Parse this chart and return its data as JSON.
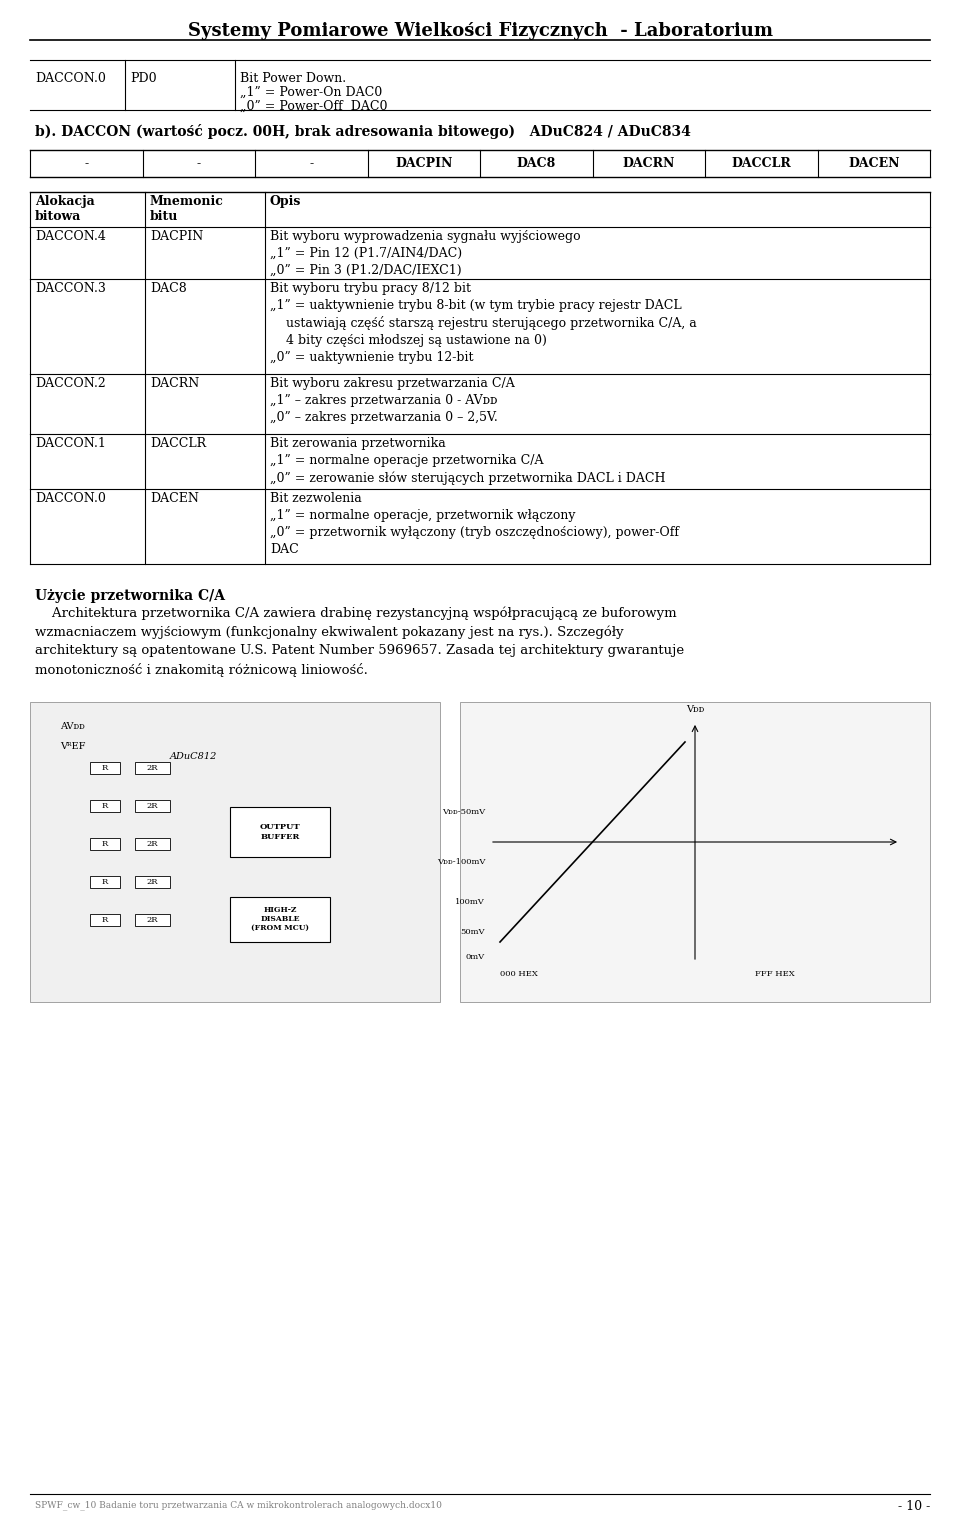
{
  "title": "Systemy Pomiarowe Wielkości Fizycznych  - Laboratorium",
  "background_color": "#ffffff",
  "text_color": "#000000",
  "footer_left": "SPWF_cw_10 Badanie toru przetwarzania CA w mikrokontrolerach analogowych.docx10",
  "footer_right": "- 10 -",
  "section_a_label": "DACCON.0",
  "section_a_mnemonic": "PD0",
  "section_a_lines": [
    "Bit Power Down.",
    "„1” = Power-On DAC0",
    "„0” = Power-Off  DAC0"
  ],
  "section_b_title": "b). DACCON (wartość pocz. 00H, brak adresowania bitowego)   ADuC824 / ADuC834",
  "header_row": [
    "-",
    "-",
    "-",
    "DACPIN",
    "DAC8",
    "DACRN",
    "DACCLR",
    "DACEN"
  ],
  "table2_headers": [
    "Alokacja\nbitowa",
    "Mnemonic\nbitu",
    "Opis"
  ],
  "table2_rows": [
    {
      "col1": "DACCON.4",
      "col2": "DACPIN",
      "col3": "Bit wyboru wyprowadzenia sygnału wyjściowego\n„1” = Pin 12 (P1.7/AIN4/DAC)\n„0” = Pin 3 (P1.2/DAC/IEXC1)"
    },
    {
      "col1": "DACCON.3",
      "col2": "DAC8",
      "col3": "Bit wyboru trybu pracy 8/12 bit\n„1” = uaktywnienie trybu 8-bit (w tym trybie pracy rejestr DACL\n    ustawiają część starszą rejestru sterującego przetwornika C/A, a\n    4 bity części młodszej są ustawione na 0)\n„0” = uaktywnienie trybu 12-bit"
    },
    {
      "col1": "DACCON.2",
      "col2": "DACRN",
      "col3": "Bit wyboru zakresu przetwarzania C/A\n„1” – zakres przetwarzania 0 - AVᴅᴅ\n„0” – zakres przetwarzania 0 – 2,5V."
    },
    {
      "col1": "DACCON.1",
      "col2": "DACCLR",
      "col3": "Bit zerowania przetwornika\n„1” = normalne operacje przetwornika C/A\n„0” = zerowanie słów sterujących przetwornika DACL i DACH"
    },
    {
      "col1": "DACCON.0",
      "col2": "DACEN",
      "col3": "Bit zezwolenia\n„1” = normalne operacje, przetwornik włączony\n„0” = przetwornik wyłączony (tryb oszczędnościowy), power-Off\nDAC"
    }
  ],
  "section_c_title": "Użycie przetwornika C/A",
  "section_c_text": "    Architektura przetwornika C/A zawiera drabinę rezystancyjną współpracującą ze buforowym\nwzmacniaczem wyjściowym (funkcjonalny ekwiwalent pokazany jest na rys.). Szczegóły\narchitektury są opatentowane U.S. Patent Number 5969657. Zasada tej architektury gwarantuje\nmonotoniczność i znakomitą różnicową liniowość."
}
